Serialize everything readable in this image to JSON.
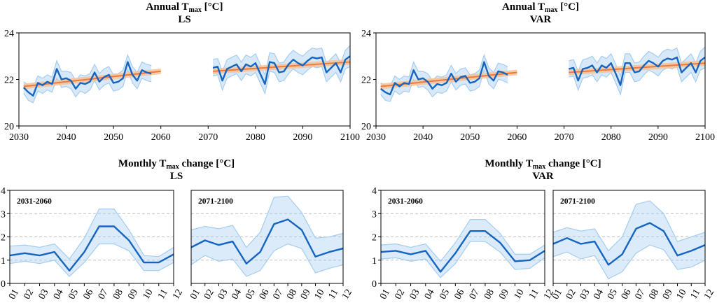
{
  "colors": {
    "series_line": "#1565c0",
    "series_band": "#a6cdf0",
    "trend_line": "#f07a3c",
    "trend_band": "#f5c39a",
    "grid": "#bdbdbd"
  },
  "chart_data": [
    {
      "panel": "annual-ls",
      "type": "line",
      "title_prefix": "Annual T",
      "title_sub": "max",
      "title_suffix": " [°C]",
      "subtitle": "LS",
      "xlim": [
        2030,
        2100
      ],
      "ylim": [
        20,
        24
      ],
      "xticks": [
        2030,
        2040,
        2050,
        2060,
        2070,
        2080,
        2090,
        2100
      ],
      "yticks": [
        20,
        22,
        24
      ],
      "segments": [
        {
          "x": [
            2031,
            2032,
            2033,
            2034,
            2035,
            2036,
            2037,
            2038,
            2039,
            2040,
            2041,
            2042,
            2043,
            2044,
            2045,
            2046,
            2047,
            2048,
            2049,
            2050,
            2051,
            2052,
            2053,
            2054,
            2055,
            2056,
            2057,
            2058,
            2059,
            2060
          ],
          "mean": [
            21.65,
            21.45,
            21.3,
            21.85,
            21.75,
            21.9,
            21.8,
            22.45,
            22.0,
            22.05,
            21.95,
            21.6,
            21.85,
            21.8,
            21.9,
            22.3,
            21.9,
            22.1,
            22.2,
            21.85,
            21.9,
            22.05,
            22.75,
            22.2,
            21.95,
            22.4,
            22.3,
            22.25,
            null,
            null
          ],
          "upper": [
            21.9,
            21.75,
            21.65,
            22.15,
            22.05,
            22.2,
            22.1,
            22.8,
            22.35,
            22.35,
            22.3,
            21.95,
            22.2,
            22.15,
            22.25,
            22.65,
            22.25,
            22.45,
            22.55,
            22.2,
            22.25,
            22.4,
            23.05,
            22.55,
            22.3,
            22.75,
            22.65,
            22.6,
            null,
            null
          ],
          "lower": [
            21.4,
            21.1,
            21.0,
            21.5,
            21.4,
            21.55,
            21.45,
            22.05,
            21.65,
            21.7,
            21.6,
            21.25,
            21.5,
            21.4,
            21.55,
            21.95,
            21.55,
            21.75,
            21.85,
            21.5,
            21.55,
            21.7,
            22.4,
            21.85,
            21.6,
            22.05,
            21.95,
            21.9,
            null,
            null
          ],
          "trend": [
            21.7,
            22.35
          ],
          "trend_x": [
            2031,
            2060
          ]
        },
        {
          "x": [
            2071,
            2072,
            2073,
            2074,
            2075,
            2076,
            2077,
            2078,
            2079,
            2080,
            2081,
            2082,
            2083,
            2084,
            2085,
            2086,
            2087,
            2088,
            2089,
            2090,
            2091,
            2092,
            2093,
            2094,
            2095,
            2096,
            2097,
            2098,
            2099,
            2100
          ],
          "mean": [
            22.5,
            22.55,
            21.95,
            22.45,
            22.55,
            22.65,
            22.35,
            22.65,
            22.55,
            22.7,
            22.25,
            21.8,
            22.75,
            22.7,
            22.3,
            22.35,
            22.65,
            22.85,
            22.7,
            22.6,
            22.8,
            22.95,
            22.9,
            22.95,
            22.3,
            22.5,
            22.7,
            22.3,
            22.85,
            23.0
          ],
          "upper": [
            22.85,
            22.9,
            22.35,
            22.85,
            22.95,
            23.05,
            22.75,
            23.05,
            22.95,
            23.1,
            22.65,
            22.2,
            23.15,
            23.1,
            22.7,
            22.75,
            23.05,
            23.25,
            23.1,
            23.0,
            23.2,
            23.35,
            23.3,
            23.35,
            22.7,
            22.9,
            23.1,
            22.7,
            23.25,
            23.45
          ],
          "lower": [
            22.15,
            22.2,
            21.55,
            22.05,
            22.15,
            22.25,
            21.95,
            22.25,
            22.15,
            22.3,
            21.85,
            21.4,
            22.35,
            22.3,
            21.9,
            21.95,
            22.25,
            22.45,
            22.3,
            22.2,
            22.4,
            22.55,
            22.5,
            22.55,
            21.9,
            22.1,
            22.3,
            21.9,
            22.45,
            22.55
          ],
          "trend": [
            22.35,
            22.75
          ],
          "trend_x": [
            2071,
            2100
          ]
        }
      ]
    },
    {
      "panel": "annual-var",
      "type": "line",
      "title_prefix": "Annual T",
      "title_sub": "max",
      "title_suffix": " [°C]",
      "subtitle": "VAR",
      "xlim": [
        2030,
        2100
      ],
      "ylim": [
        20,
        24
      ],
      "xticks": [
        2030,
        2040,
        2050,
        2060,
        2070,
        2080,
        2090,
        2100
      ],
      "yticks": [
        20,
        22,
        24
      ],
      "segments": [
        {
          "x": [
            2031,
            2032,
            2033,
            2034,
            2035,
            2036,
            2037,
            2038,
            2039,
            2040,
            2041,
            2042,
            2043,
            2044,
            2045,
            2046,
            2047,
            2048,
            2049,
            2050,
            2051,
            2052,
            2053,
            2054,
            2055,
            2056,
            2057,
            2058,
            2059,
            2060
          ],
          "mean": [
            21.6,
            21.45,
            21.35,
            21.85,
            21.7,
            21.85,
            21.8,
            22.4,
            22.0,
            22.05,
            21.9,
            21.6,
            21.8,
            21.75,
            21.85,
            22.25,
            21.9,
            22.1,
            22.15,
            21.85,
            21.9,
            22.05,
            22.75,
            22.15,
            21.95,
            22.35,
            22.3,
            22.2,
            null,
            null
          ],
          "upper": [
            21.85,
            21.75,
            21.7,
            22.15,
            22.0,
            22.15,
            22.1,
            22.75,
            22.35,
            22.35,
            22.25,
            21.95,
            22.15,
            22.1,
            22.2,
            22.6,
            22.25,
            22.45,
            22.5,
            22.2,
            22.25,
            22.4,
            23.05,
            22.5,
            22.3,
            22.7,
            22.65,
            22.55,
            null,
            null
          ],
          "lower": [
            21.35,
            21.1,
            21.05,
            21.5,
            21.35,
            21.5,
            21.45,
            22.0,
            21.65,
            21.7,
            21.55,
            21.25,
            21.45,
            21.4,
            21.5,
            21.9,
            21.55,
            21.75,
            21.8,
            21.5,
            21.55,
            21.7,
            22.4,
            21.8,
            21.6,
            22.0,
            21.95,
            21.85,
            null,
            null
          ],
          "trend": [
            21.7,
            22.3
          ],
          "trend_x": [
            2031,
            2060
          ]
        },
        {
          "x": [
            2071,
            2072,
            2073,
            2074,
            2075,
            2076,
            2077,
            2078,
            2079,
            2080,
            2081,
            2082,
            2083,
            2084,
            2085,
            2086,
            2087,
            2088,
            2089,
            2090,
            2091,
            2092,
            2093,
            2094,
            2095,
            2096,
            2097,
            2098,
            2099,
            2100
          ],
          "mean": [
            22.45,
            22.5,
            21.95,
            22.45,
            22.5,
            22.6,
            22.3,
            22.6,
            22.5,
            22.7,
            22.25,
            21.75,
            22.7,
            22.7,
            22.3,
            22.35,
            22.6,
            22.8,
            22.7,
            22.55,
            22.8,
            22.9,
            22.85,
            22.95,
            22.3,
            22.5,
            22.7,
            22.3,
            22.8,
            22.95
          ],
          "upper": [
            22.8,
            22.85,
            22.35,
            22.85,
            22.9,
            23.0,
            22.7,
            23.0,
            22.9,
            23.1,
            22.65,
            22.15,
            23.1,
            23.1,
            22.7,
            22.75,
            23.0,
            23.2,
            23.1,
            22.95,
            23.2,
            23.3,
            23.25,
            23.35,
            22.7,
            22.9,
            23.1,
            22.7,
            23.2,
            23.4
          ],
          "lower": [
            22.1,
            22.15,
            21.55,
            22.05,
            22.1,
            22.2,
            21.9,
            22.2,
            22.1,
            22.3,
            21.85,
            21.35,
            22.3,
            22.3,
            21.9,
            21.95,
            22.2,
            22.4,
            22.3,
            22.15,
            22.4,
            22.5,
            22.45,
            22.55,
            21.9,
            22.1,
            22.3,
            21.9,
            22.4,
            22.5
          ],
          "trend": [
            22.3,
            22.7
          ],
          "trend_x": [
            2071,
            2100
          ]
        }
      ]
    },
    {
      "panel": "monthly-ls",
      "type": "line",
      "title_prefix": "Monthly T",
      "title_sub": "max",
      "title_suffix": " change [°C]",
      "subtitle": "LS",
      "ylim": [
        0,
        4
      ],
      "yticks": [
        0,
        1,
        2,
        3,
        4
      ],
      "months": [
        "01",
        "02",
        "03",
        "04",
        "05",
        "06",
        "07",
        "08",
        "09",
        "10",
        "11",
        "12"
      ],
      "periods": [
        {
          "label": "2031-2060",
          "mean": [
            1.2,
            1.3,
            1.2,
            1.35,
            0.55,
            1.35,
            2.45,
            2.45,
            1.85,
            0.9,
            0.9,
            1.25
          ],
          "upper": [
            1.6,
            1.65,
            1.55,
            1.7,
            1.05,
            1.95,
            3.2,
            3.2,
            2.3,
            1.2,
            1.15,
            1.55
          ],
          "lower": [
            0.85,
            0.95,
            0.85,
            1.0,
            0.3,
            0.9,
            1.7,
            1.7,
            1.4,
            0.55,
            0.55,
            0.9
          ]
        },
        {
          "label": "2071-2100",
          "mean": [
            1.55,
            1.85,
            1.65,
            1.8,
            0.85,
            1.35,
            2.55,
            2.75,
            2.3,
            1.15,
            1.35,
            1.5
          ],
          "upper": [
            2.3,
            2.45,
            2.35,
            2.5,
            1.55,
            2.2,
            3.7,
            3.75,
            3.05,
            1.95,
            2.0,
            2.15
          ],
          "lower": [
            0.8,
            1.2,
            0.95,
            1.05,
            0.3,
            0.55,
            1.4,
            1.7,
            1.5,
            0.45,
            0.65,
            0.8
          ]
        }
      ]
    },
    {
      "panel": "monthly-var",
      "type": "line",
      "title_prefix": "Monthly T",
      "title_sub": "max",
      "title_suffix": " change [°C]",
      "subtitle": "VAR",
      "ylim": [
        0,
        4
      ],
      "yticks": [
        0,
        1,
        2,
        3,
        4
      ],
      "months": [
        "01",
        "02",
        "03",
        "04",
        "05",
        "06",
        "07",
        "08",
        "09",
        "10",
        "11",
        "12"
      ],
      "periods": [
        {
          "label": "2031-2060",
          "mean": [
            1.35,
            1.4,
            1.25,
            1.4,
            0.5,
            1.3,
            2.25,
            2.25,
            1.75,
            0.95,
            1.0,
            1.4
          ],
          "upper": [
            1.65,
            1.7,
            1.55,
            1.7,
            0.95,
            1.75,
            2.75,
            2.75,
            2.15,
            1.25,
            1.25,
            1.65
          ],
          "lower": [
            1.05,
            1.1,
            0.95,
            1.05,
            0.25,
            0.85,
            1.8,
            1.8,
            1.35,
            0.6,
            0.65,
            1.1
          ]
        },
        {
          "label": "2071-2100",
          "mean": [
            1.7,
            1.95,
            1.7,
            1.8,
            0.8,
            1.25,
            2.35,
            2.6,
            2.25,
            1.2,
            1.4,
            1.65
          ],
          "upper": [
            2.2,
            2.4,
            2.25,
            2.35,
            1.4,
            2.0,
            3.4,
            3.55,
            3.0,
            1.8,
            2.0,
            2.2
          ],
          "lower": [
            1.15,
            1.35,
            1.05,
            1.2,
            0.2,
            0.5,
            1.3,
            1.65,
            1.45,
            0.6,
            0.7,
            1.0
          ]
        }
      ]
    }
  ]
}
